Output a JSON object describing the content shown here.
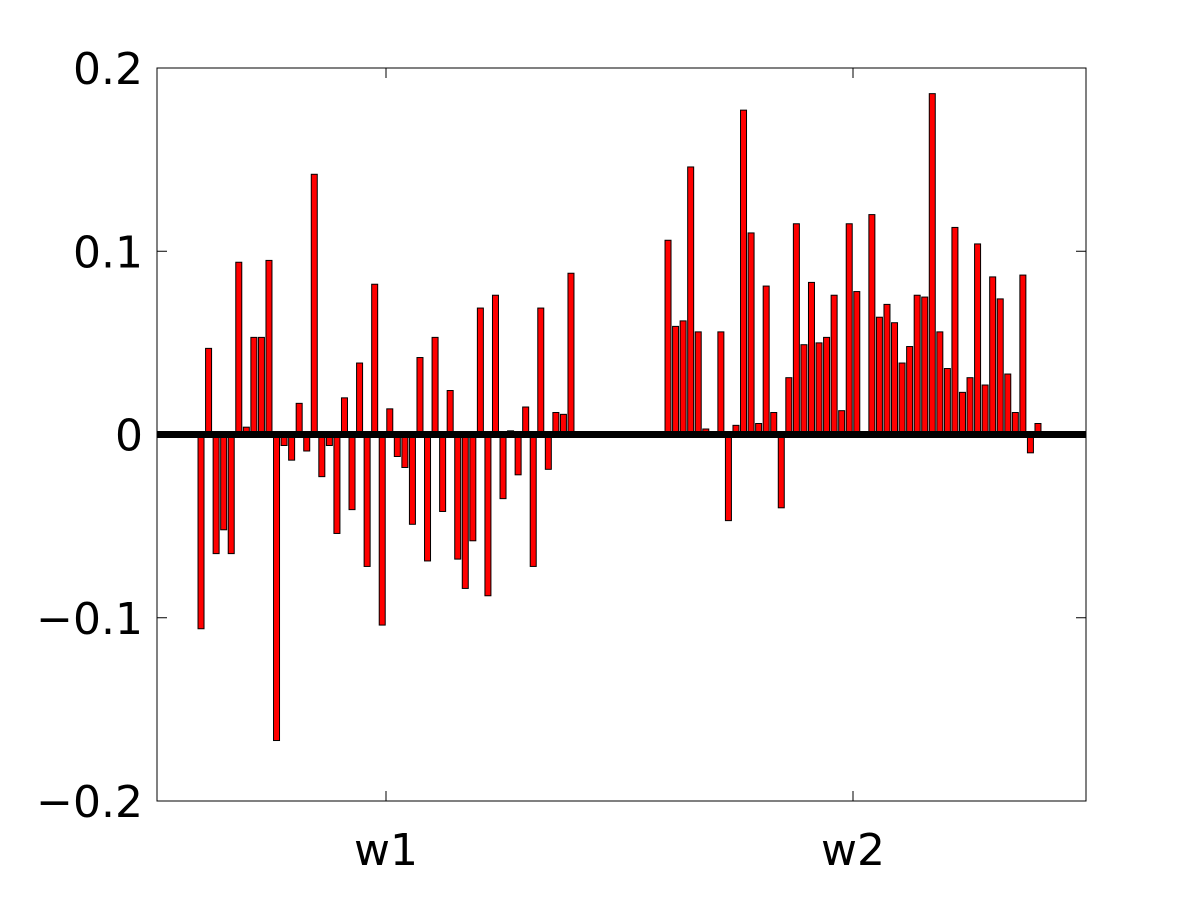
{
  "chart_data": {
    "type": "bar",
    "title": "",
    "xlabel": "",
    "ylabel": "",
    "ylim": [
      -0.2,
      0.2
    ],
    "yticks": [
      -0.2,
      -0.1,
      0,
      0.1,
      0.2
    ],
    "ytick_labels": [
      "−0.2",
      "−0.1",
      "0",
      "0.1",
      "0.2"
    ],
    "xtick_labels": [
      "w1",
      "w2"
    ],
    "grid": false,
    "legend": "none",
    "bar_color": "#ff0000",
    "bar_edge_color": "#000000",
    "zero_line_color": "#000000",
    "groups": [
      {
        "name": "w1",
        "values": [
          -0.106,
          0.047,
          -0.065,
          -0.052,
          -0.065,
          0.094,
          0.004,
          0.053,
          0.053,
          0.095,
          -0.167,
          -0.006,
          -0.014,
          0.017,
          -0.009,
          0.142,
          -0.023,
          -0.006,
          -0.054,
          0.02,
          -0.041,
          0.039,
          -0.072,
          0.082,
          -0.104,
          0.014,
          -0.012,
          -0.018,
          -0.049,
          0.042,
          -0.069,
          0.053,
          -0.042,
          0.024,
          -0.068,
          -0.084,
          -0.058,
          0.069,
          -0.088,
          0.076,
          -0.035,
          0.002,
          -0.022,
          0.015,
          -0.072,
          0.069,
          -0.019,
          0.012,
          0.011,
          0.088
        ]
      },
      {
        "name": "w2",
        "values": [
          0.106,
          0.059,
          0.062,
          0.146,
          0.056,
          0.003,
          0.0,
          0.056,
          -0.047,
          0.005,
          0.177,
          0.11,
          0.006,
          0.081,
          0.012,
          -0.04,
          0.031,
          0.115,
          0.049,
          0.083,
          0.05,
          0.053,
          0.076,
          0.013,
          0.115,
          0.078,
          0.0,
          0.12,
          0.064,
          0.071,
          0.061,
          0.039,
          0.048,
          0.076,
          0.075,
          0.186,
          0.056,
          0.036,
          0.113,
          0.023,
          0.031,
          0.104,
          0.027,
          0.086,
          0.074,
          0.033,
          0.012,
          0.087,
          -0.01,
          0.006
        ]
      }
    ]
  }
}
